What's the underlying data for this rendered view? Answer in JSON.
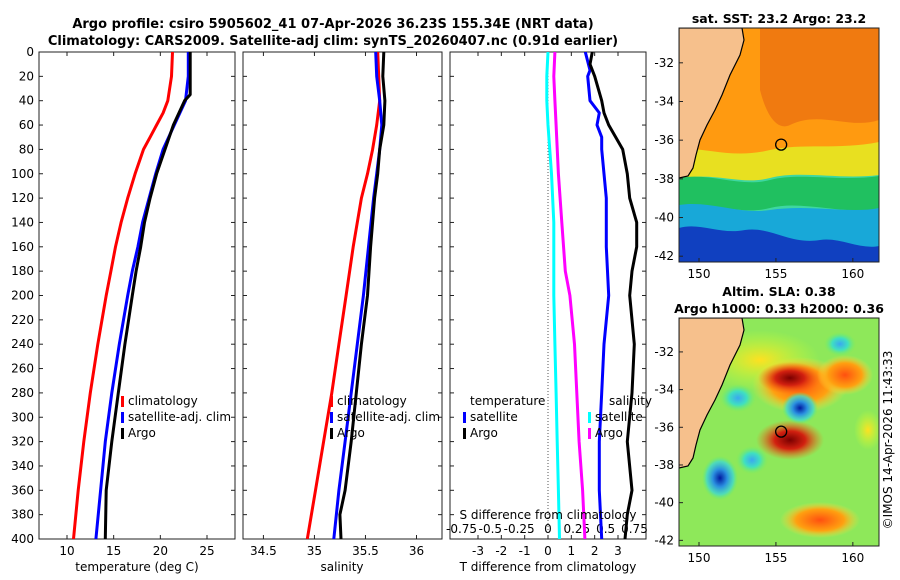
{
  "title_line1": "Argo profile: csiro 5905602_41 07-Apr-2026 36.23S 155.34E (NRT data)",
  "title_line2": "Climatology: CARS2009. Satellite-adj clim: synTS_20260407.nc (0.91d earlier)",
  "copyright": "©IMOS 14-Apr-2026 11:43:33",
  "colors": {
    "climatology": "#ff0000",
    "satellite": "#0000ff",
    "argo": "#000000",
    "sat_salt": "#00ffff",
    "salt_diff": "#ff00ff"
  },
  "chart_data": [
    {
      "type": "line",
      "id": "temperature",
      "xlabel": "temperature (deg C)",
      "ylabel": "",
      "xlim": [
        7,
        28
      ],
      "ylim": [
        400,
        0
      ],
      "xticks": [
        "10",
        "15",
        "20",
        "25"
      ],
      "xtick_vals": [
        10,
        15,
        20,
        25
      ],
      "yticks": [
        "0",
        "20",
        "40",
        "60",
        "80",
        "100",
        "120",
        "140",
        "160",
        "180",
        "200",
        "220",
        "240",
        "260",
        "280",
        "300",
        "320",
        "340",
        "360",
        "380",
        "400"
      ],
      "ytick_vals": [
        0,
        20,
        40,
        60,
        80,
        100,
        120,
        140,
        160,
        180,
        200,
        220,
        240,
        260,
        280,
        300,
        320,
        340,
        360,
        380,
        400
      ],
      "legend": [
        "climatology",
        "satellite-adj. clim",
        "Argo"
      ],
      "series": [
        {
          "name": "climatology",
          "depth": [
            0,
            20,
            40,
            50,
            60,
            70,
            80,
            100,
            120,
            140,
            160,
            180,
            200,
            240,
            280,
            320,
            360,
            400
          ],
          "values": [
            21.3,
            21.2,
            20.8,
            20.3,
            19.6,
            18.9,
            18.2,
            17.3,
            16.5,
            15.8,
            15.2,
            14.7,
            14.2,
            13.3,
            12.5,
            11.8,
            11.2,
            10.7
          ]
        },
        {
          "name": "satellite-adj. clim",
          "depth": [
            0,
            20,
            40,
            60,
            80,
            100,
            120,
            140,
            160,
            180,
            200,
            240,
            280,
            320,
            360,
            400
          ],
          "values": [
            23.0,
            23.0,
            22.7,
            21.5,
            20.3,
            19.5,
            18.8,
            18.1,
            17.6,
            17.0,
            16.5,
            15.6,
            14.8,
            14.1,
            13.6,
            13.1
          ]
        },
        {
          "name": "Argo",
          "depth": [
            0,
            20,
            35,
            40,
            60,
            80,
            100,
            120,
            140,
            160,
            180,
            200,
            240,
            280,
            320,
            360,
            400
          ],
          "values": [
            23.2,
            23.2,
            23.2,
            22.6,
            21.4,
            20.5,
            19.6,
            18.9,
            18.3,
            17.9,
            17.4,
            17.0,
            16.2,
            15.5,
            14.8,
            14.2,
            14.1
          ]
        }
      ]
    },
    {
      "type": "line",
      "id": "salinity",
      "xlabel": "salinity",
      "ylabel": "",
      "xlim": [
        34.3,
        36.25
      ],
      "ylim": [
        400,
        0
      ],
      "xticks": [
        "34.5",
        "35",
        "35.5",
        "36"
      ],
      "xtick_vals": [
        34.5,
        35,
        35.5,
        36
      ],
      "legend": [
        "climatology",
        "satellite-adj. clim",
        "Argo"
      ],
      "series": [
        {
          "name": "climatology",
          "depth": [
            0,
            20,
            40,
            60,
            80,
            100,
            120,
            160,
            200,
            240,
            280,
            320,
            360,
            400
          ],
          "values": [
            35.62,
            35.63,
            35.64,
            35.61,
            35.57,
            35.52,
            35.46,
            35.38,
            35.31,
            35.24,
            35.17,
            35.09,
            35.01,
            34.93
          ]
        },
        {
          "name": "satellite-adj. clim",
          "depth": [
            0,
            20,
            40,
            60,
            80,
            100,
            120,
            160,
            200,
            240,
            280,
            320,
            360,
            400
          ],
          "values": [
            35.6,
            35.61,
            35.64,
            35.66,
            35.64,
            35.61,
            35.58,
            35.53,
            35.48,
            35.42,
            35.36,
            35.3,
            35.24,
            35.19
          ]
        },
        {
          "name": "Argo",
          "depth": [
            0,
            20,
            40,
            60,
            80,
            100,
            120,
            160,
            200,
            240,
            280,
            320,
            360,
            380,
            400
          ],
          "values": [
            35.68,
            35.67,
            35.69,
            35.68,
            35.64,
            35.62,
            35.59,
            35.55,
            35.52,
            35.46,
            35.41,
            35.36,
            35.3,
            35.25,
            35.26
          ]
        }
      ]
    },
    {
      "type": "line",
      "id": "difference",
      "xlabel": "T difference from climatology",
      "x2label": "S difference from climatology",
      "xlim": [
        -4.2,
        4.2
      ],
      "ylim": [
        400,
        0
      ],
      "xticks": [
        "-3",
        "-2",
        "-1",
        "0",
        "1",
        "2",
        "3"
      ],
      "xtick_vals": [
        -3,
        -2,
        -1,
        0,
        1,
        2,
        3
      ],
      "x2ticks": [
        "-0.75",
        "-0.5",
        "-0.25",
        "0",
        "0.25",
        "0.5",
        "0.75"
      ],
      "x2tick_vals": [
        -0.75,
        -0.5,
        -0.25,
        0,
        0.25,
        0.5,
        0.75
      ],
      "legend_temperature_title": "temperature",
      "legend_salinity_title": "salinity",
      "legend": [
        "satellite",
        "Argo"
      ],
      "series": [
        {
          "name": "T satellite",
          "depth": [
            0,
            15,
            20,
            40,
            50,
            60,
            70,
            80,
            100,
            120,
            160,
            200,
            240,
            280,
            320,
            360,
            400
          ],
          "values": [
            1.6,
            1.8,
            1.7,
            1.8,
            2.2,
            2.1,
            2.3,
            2.3,
            2.4,
            2.5,
            2.5,
            2.6,
            2.4,
            2.3,
            2.2,
            2.2,
            2.3
          ]
        },
        {
          "name": "T Argo",
          "depth": [
            0,
            10,
            20,
            40,
            50,
            60,
            80,
            100,
            120,
            140,
            160,
            180,
            200,
            240,
            280,
            320,
            360,
            380,
            400
          ],
          "values": [
            1.9,
            1.8,
            2.0,
            2.3,
            2.4,
            2.6,
            3.2,
            3.4,
            3.5,
            3.8,
            3.8,
            3.6,
            3.5,
            3.7,
            3.6,
            3.4,
            3.6,
            3.4,
            3.3
          ]
        },
        {
          "name": "S satellite",
          "depth": [
            0,
            20,
            40,
            60,
            100,
            140,
            180,
            200,
            240,
            280,
            320,
            360,
            400
          ],
          "values": [
            0.0,
            -0.01,
            -0.01,
            0.0,
            0.03,
            0.05,
            0.05,
            0.05,
            0.06,
            0.07,
            0.08,
            0.09,
            0.1
          ]
        },
        {
          "name": "S Argo",
          "depth": [
            0,
            20,
            40,
            60,
            100,
            140,
            180,
            200,
            240,
            280,
            320,
            360,
            400
          ],
          "values": [
            0.06,
            0.05,
            0.06,
            0.07,
            0.09,
            0.12,
            0.15,
            0.19,
            0.23,
            0.25,
            0.27,
            0.3,
            0.32
          ]
        }
      ]
    },
    {
      "type": "heatmap",
      "id": "sst_map",
      "title": "sat. SST: 23.2 Argo: 23.2",
      "xlim": [
        148.7,
        161.7
      ],
      "ylim": [
        -42.3,
        -30.2
      ],
      "xticks": [
        "150",
        "155",
        "160"
      ],
      "xtick_vals": [
        150,
        155,
        160
      ],
      "yticks": [
        "-32",
        "-34",
        "-36",
        "-38",
        "-40",
        "-42"
      ],
      "ytick_vals": [
        -32,
        -34,
        -36,
        -38,
        -40,
        -42
      ],
      "marker": {
        "lon": 155.34,
        "lat": -36.23
      }
    },
    {
      "type": "heatmap",
      "id": "sla_map",
      "title": "Altim. SLA: 0.38",
      "subtitle": "Argo h1000: 0.33 h2000: 0.36",
      "xlim": [
        148.7,
        161.7
      ],
      "ylim": [
        -42.3,
        -30.2
      ],
      "xticks": [
        "150",
        "155",
        "160"
      ],
      "xtick_vals": [
        150,
        155,
        160
      ],
      "yticks": [
        "-32",
        "-34",
        "-36",
        "-38",
        "-40",
        "-42"
      ],
      "ytick_vals": [
        -32,
        -34,
        -36,
        -38,
        -40,
        -42
      ],
      "marker": {
        "lon": 155.34,
        "lat": -36.23
      }
    }
  ]
}
